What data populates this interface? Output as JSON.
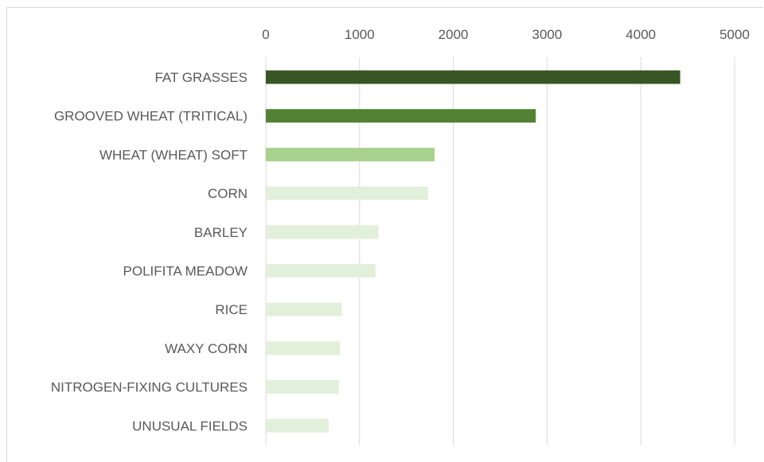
{
  "chart_data": {
    "type": "bar",
    "orientation": "horizontal",
    "categories": [
      "FAT GRASSES",
      "GROOVED WHEAT (TRITICAL)",
      "WHEAT (WHEAT) SOFT",
      "CORN",
      "BARLEY",
      "POLIFITA MEADOW",
      "RICE",
      "WAXY CORN",
      "NITROGEN-FIXING CULTURES",
      "UNUSUAL FIELDS"
    ],
    "values": [
      4420,
      2880,
      1800,
      1730,
      1200,
      1170,
      810,
      790,
      780,
      670
    ],
    "colors": [
      "#375623",
      "#548235",
      "#a9d18e",
      "#e2efda",
      "#e2efda",
      "#e2efda",
      "#e2efda",
      "#e2efda",
      "#e2efda",
      "#e2efda"
    ],
    "x_ticks": [
      0,
      1000,
      2000,
      3000,
      4000,
      5000
    ],
    "xlim": [
      0,
      5000
    ],
    "axis_position": "top",
    "grid": true,
    "title": "",
    "xlabel": "",
    "ylabel": ""
  }
}
